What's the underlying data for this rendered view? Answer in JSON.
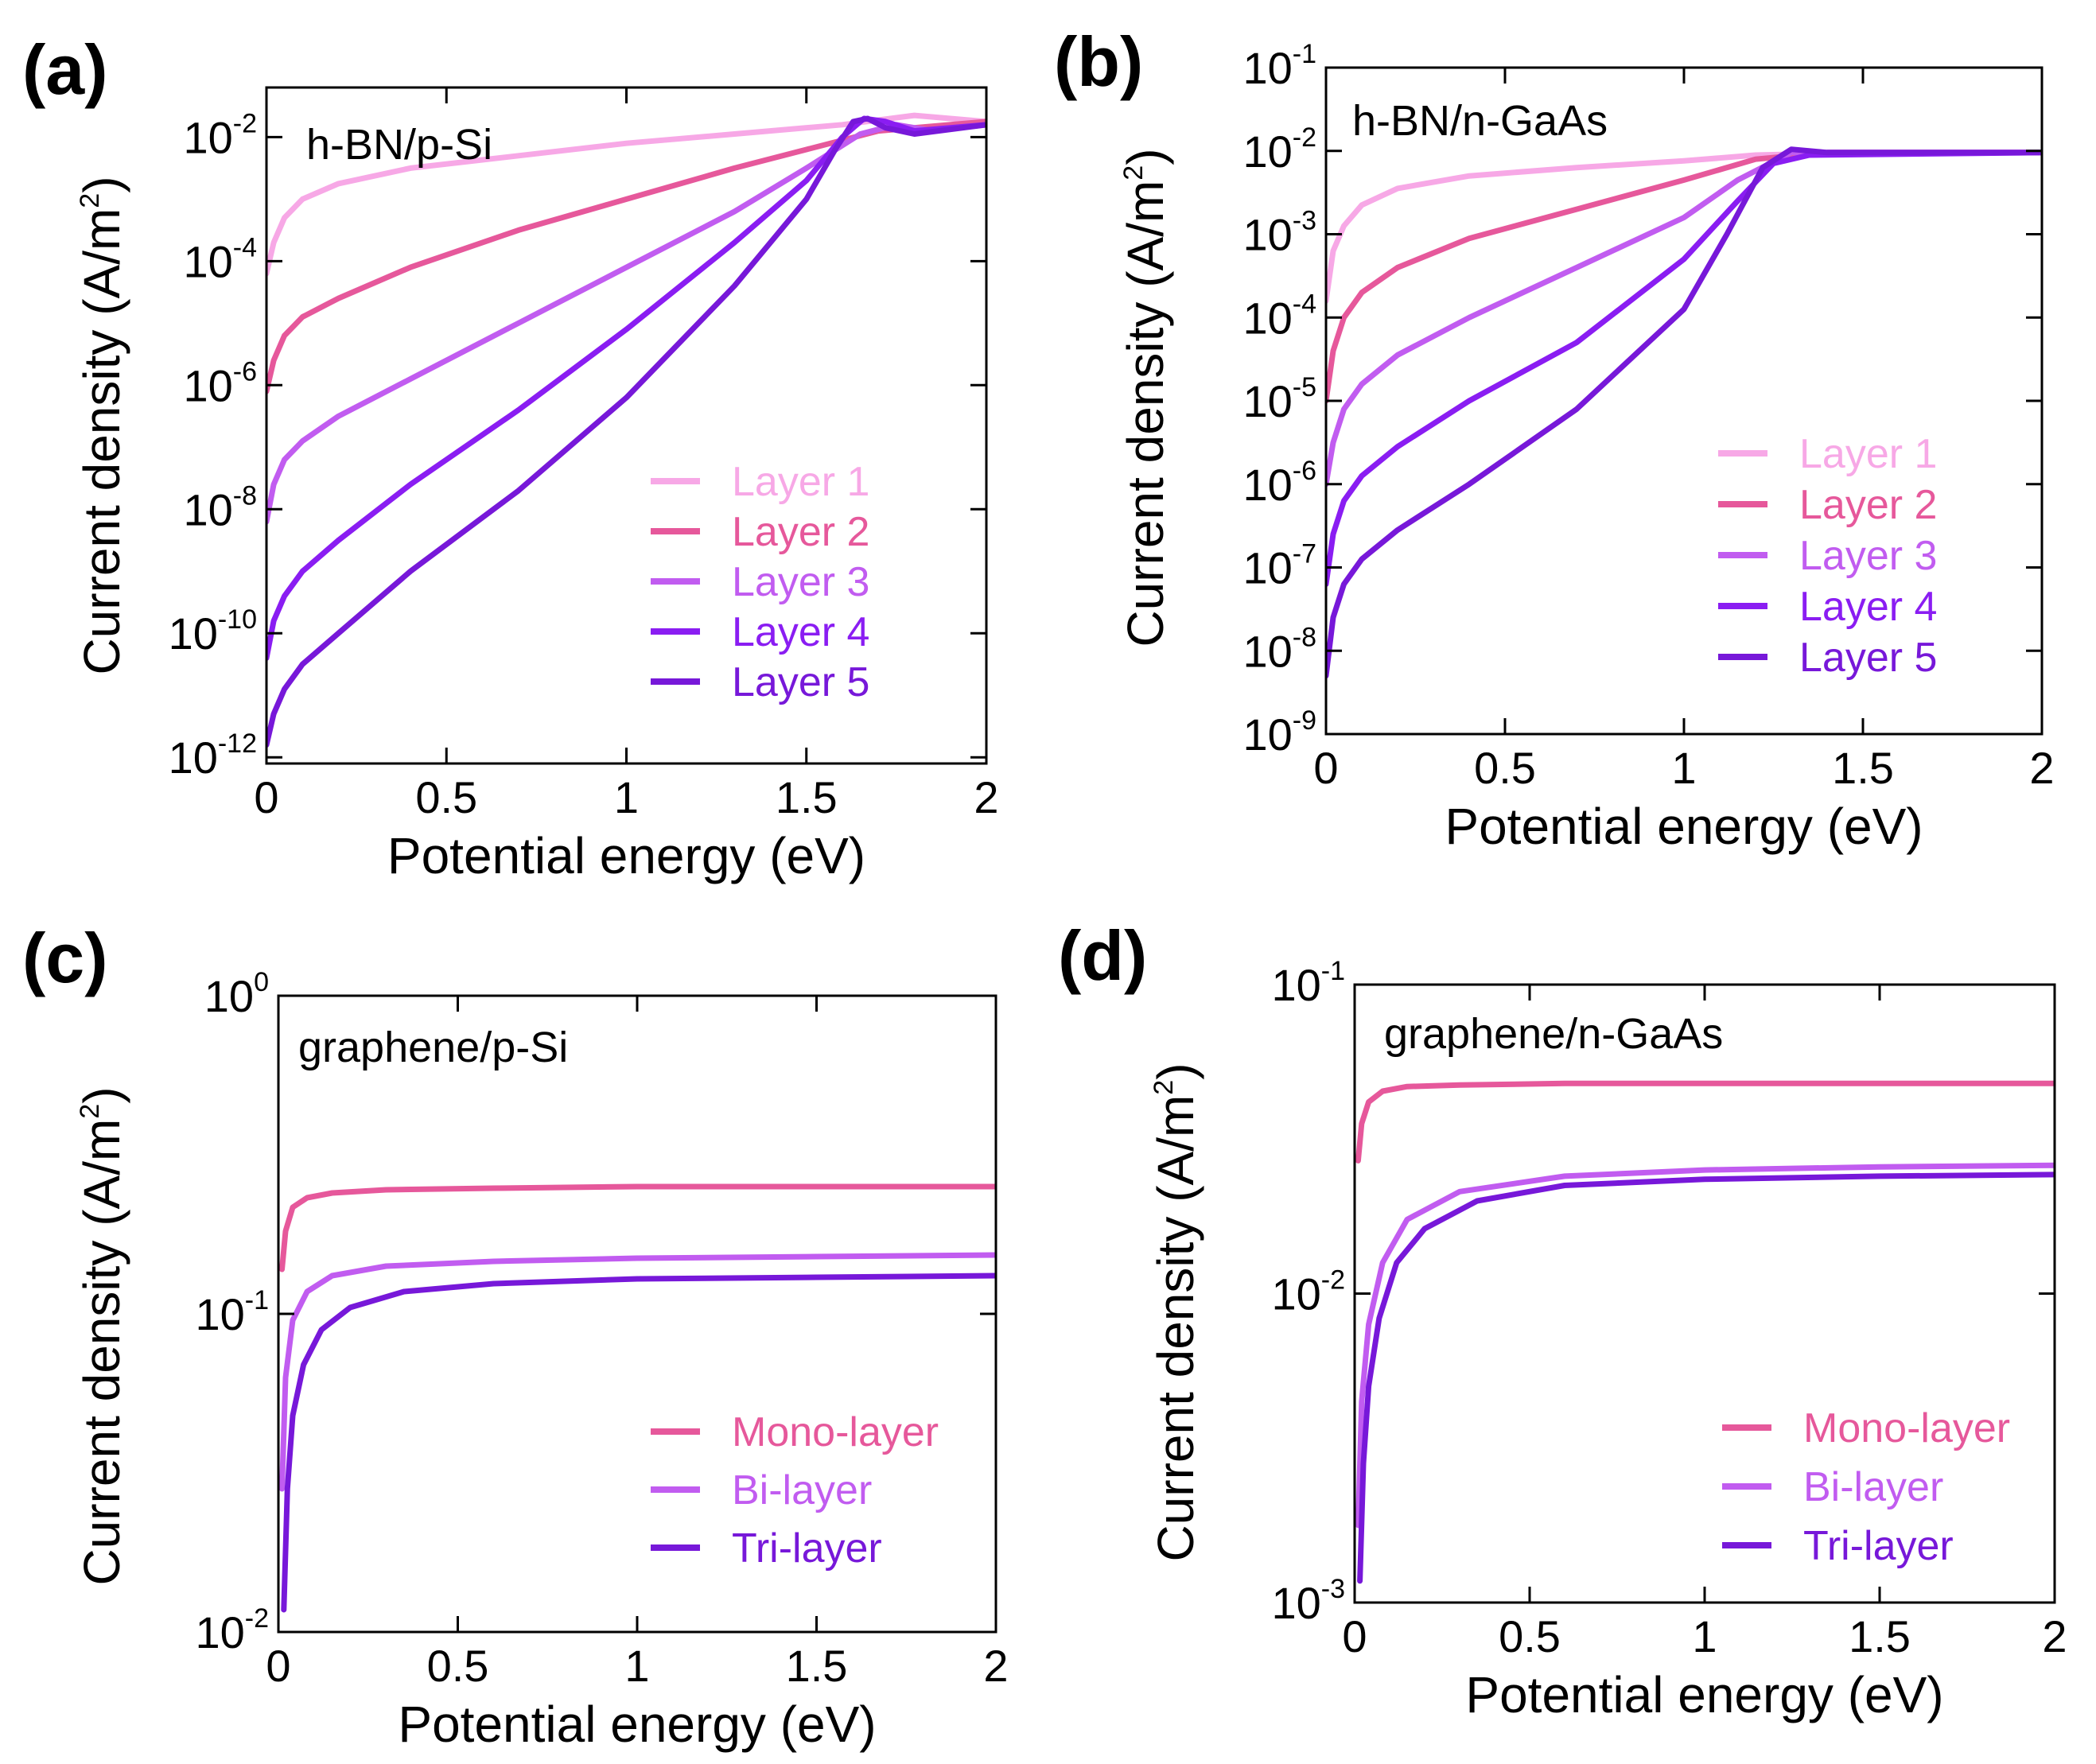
{
  "colors": {
    "c1": "#f7a8e6",
    "c2": "#e264c4",
    "c3": "#c15cf0",
    "c4": "#8a1df2",
    "c5": "#7718d9",
    "pink": "#e6589b",
    "mono": "#f7a8e6",
    "bi": "#c15cf0",
    "tri": "#7718d9"
  },
  "chart_data": [
    {
      "panel": "(a)",
      "type": "line",
      "yscale": "log",
      "annotation": "h-BN/p-Si",
      "xlabel": "Potential energy (eV)",
      "ylabel": "Current density (A/m",
      "ylabel_sup": "2",
      "ylabel_end": ")",
      "xlim": [
        0,
        2
      ],
      "ylim_log10": [
        -12.1,
        -1.2
      ],
      "x_ticks": [
        0,
        0.5,
        1,
        1.5,
        2
      ],
      "x_tick_labels": [
        "0",
        "0.5",
        "1",
        "1.5",
        "2"
      ],
      "y_ticks": [
        -12,
        -10,
        -8,
        -6,
        -4,
        -2
      ],
      "y_tick_base": "10",
      "y_tick_exps": [
        "-12",
        "-10",
        "-8",
        "-6",
        "-4",
        "-2"
      ],
      "legend": [
        "Layer 1",
        "Layer 2",
        "Layer 3",
        "Layer 4",
        "Layer 5"
      ],
      "series": [
        {
          "name": "Layer 1",
          "color_key": "c1",
          "x": [
            0,
            0.02,
            0.05,
            0.1,
            0.2,
            0.4,
            0.7,
            1.0,
            1.3,
            1.6,
            1.8,
            2.0
          ],
          "log10y": [
            -4.2,
            -3.7,
            -3.3,
            -3.0,
            -2.75,
            -2.5,
            -2.3,
            -2.1,
            -1.95,
            -1.8,
            -1.65,
            -1.75
          ]
        },
        {
          "name": "Layer 2",
          "color_key": "pink",
          "x": [
            0,
            0.02,
            0.05,
            0.1,
            0.2,
            0.4,
            0.7,
            1.0,
            1.3,
            1.5,
            1.7,
            2.0
          ],
          "log10y": [
            -6.1,
            -5.6,
            -5.2,
            -4.9,
            -4.6,
            -4.1,
            -3.5,
            -3.0,
            -2.5,
            -2.2,
            -1.9,
            -1.75
          ]
        },
        {
          "name": "Layer 3",
          "color_key": "c3",
          "x": [
            0,
            0.02,
            0.05,
            0.1,
            0.2,
            0.4,
            0.7,
            1.0,
            1.3,
            1.5,
            1.65,
            1.75,
            1.85,
            2.0
          ],
          "log10y": [
            -8.2,
            -7.6,
            -7.2,
            -6.9,
            -6.5,
            -5.9,
            -5.0,
            -4.1,
            -3.2,
            -2.5,
            -1.95,
            -1.8,
            -1.9,
            -1.8
          ]
        },
        {
          "name": "Layer 4",
          "color_key": "c4",
          "x": [
            0,
            0.02,
            0.05,
            0.1,
            0.2,
            0.4,
            0.7,
            1.0,
            1.3,
            1.5,
            1.6,
            1.66,
            1.72,
            1.8,
            2.0
          ],
          "log10y": [
            -10.4,
            -9.8,
            -9.4,
            -9.0,
            -8.5,
            -7.6,
            -6.4,
            -5.1,
            -3.7,
            -2.7,
            -2.0,
            -1.7,
            -1.75,
            -1.9,
            -1.8
          ]
        },
        {
          "name": "Layer 5",
          "color_key": "c5",
          "x": [
            0,
            0.02,
            0.05,
            0.1,
            0.2,
            0.4,
            0.7,
            1.0,
            1.3,
            1.5,
            1.58,
            1.63,
            1.67,
            1.72,
            1.8,
            2.0
          ],
          "log10y": [
            -11.8,
            -11.3,
            -10.9,
            -10.5,
            -10.0,
            -9.0,
            -7.7,
            -6.2,
            -4.4,
            -3.0,
            -2.2,
            -1.75,
            -1.7,
            -1.85,
            -1.95,
            -1.8
          ]
        }
      ]
    },
    {
      "panel": "(b)",
      "type": "line",
      "yscale": "log",
      "annotation": "h-BN/n-GaAs",
      "xlabel": "Potential energy (eV)",
      "ylabel": "Current density (A/m",
      "ylabel_sup": "2",
      "ylabel_end": ")",
      "xlim": [
        0,
        2
      ],
      "ylim_log10": [
        -9,
        -1
      ],
      "x_ticks": [
        0,
        0.5,
        1,
        1.5,
        2
      ],
      "x_tick_labels": [
        "0",
        "0.5",
        "1",
        "1.5",
        "2"
      ],
      "y_ticks": [
        -9,
        -8,
        -7,
        -6,
        -5,
        -4,
        -3,
        -2,
        -1
      ],
      "y_tick_base": "10",
      "y_tick_exps": [
        "-9",
        "-8",
        "-7",
        "-6",
        "-5",
        "-4",
        "-3",
        "-2",
        "-1"
      ],
      "legend": [
        "Layer 1",
        "Layer 2",
        "Layer 3",
        "Layer 4",
        "Layer 5"
      ],
      "series": [
        {
          "name": "Layer 1",
          "color_key": "c1",
          "x": [
            0,
            0.02,
            0.05,
            0.1,
            0.2,
            0.4,
            0.7,
            1.0,
            1.2,
            1.5,
            2.0
          ],
          "log10y": [
            -3.8,
            -3.2,
            -2.9,
            -2.65,
            -2.45,
            -2.3,
            -2.2,
            -2.12,
            -2.05,
            -2.02,
            -2.02
          ]
        },
        {
          "name": "Layer 2",
          "color_key": "pink",
          "x": [
            0,
            0.02,
            0.05,
            0.1,
            0.2,
            0.4,
            0.7,
            1.0,
            1.2,
            1.4,
            2.0
          ],
          "log10y": [
            -5.0,
            -4.4,
            -4.0,
            -3.7,
            -3.4,
            -3.05,
            -2.7,
            -2.35,
            -2.1,
            -2.02,
            -2.02
          ]
        },
        {
          "name": "Layer 3",
          "color_key": "c3",
          "x": [
            0,
            0.02,
            0.05,
            0.1,
            0.2,
            0.4,
            0.7,
            1.0,
            1.15,
            1.3,
            2.0
          ],
          "log10y": [
            -6.0,
            -5.5,
            -5.1,
            -4.8,
            -4.45,
            -4.0,
            -3.4,
            -2.8,
            -2.35,
            -2.02,
            -2.02
          ]
        },
        {
          "name": "Layer 4",
          "color_key": "c4",
          "x": [
            0,
            0.02,
            0.05,
            0.1,
            0.2,
            0.4,
            0.7,
            1.0,
            1.15,
            1.25,
            1.35,
            2.0
          ],
          "log10y": [
            -7.2,
            -6.6,
            -6.2,
            -5.9,
            -5.55,
            -5.0,
            -4.3,
            -3.3,
            -2.6,
            -2.15,
            -2.05,
            -2.02
          ]
        },
        {
          "name": "Layer 5",
          "color_key": "c5",
          "x": [
            0,
            0.02,
            0.05,
            0.1,
            0.2,
            0.4,
            0.7,
            1.0,
            1.12,
            1.22,
            1.3,
            1.4,
            2.0
          ],
          "log10y": [
            -8.3,
            -7.6,
            -7.2,
            -6.9,
            -6.55,
            -6.0,
            -5.1,
            -3.9,
            -3.0,
            -2.2,
            -1.98,
            -2.02,
            -2.02
          ]
        }
      ]
    },
    {
      "panel": "(c)",
      "type": "line",
      "yscale": "log",
      "annotation": "graphene/p-Si",
      "xlabel": "Potential energy (eV)",
      "ylabel": "Current density (A/m",
      "ylabel_sup": "2",
      "ylabel_end": ")",
      "xlim": [
        0,
        2
      ],
      "ylim_log10": [
        -2,
        0
      ],
      "x_ticks": [
        0,
        0.5,
        1,
        1.5,
        2
      ],
      "x_tick_labels": [
        "0",
        "0.5",
        "1",
        "1.5",
        "2"
      ],
      "y_ticks": [
        -2,
        -1,
        0
      ],
      "y_tick_base": "10",
      "y_tick_exps": [
        "-2",
        "-1",
        "0"
      ],
      "legend": [
        "Mono-layer",
        "Bi-layer",
        "Tri-layer"
      ],
      "series": [
        {
          "name": "Mono-layer",
          "color_key": "pink",
          "x": [
            0.01,
            0.02,
            0.04,
            0.08,
            0.15,
            0.3,
            0.6,
            1.0,
            1.5,
            2.0
          ],
          "log10y": [
            -0.86,
            -0.74,
            -0.665,
            -0.635,
            -0.62,
            -0.61,
            -0.605,
            -0.6,
            -0.6,
            -0.6
          ]
        },
        {
          "name": "Bi-layer",
          "color_key": "c3",
          "x": [
            0.01,
            0.02,
            0.04,
            0.08,
            0.15,
            0.3,
            0.6,
            1.0,
            1.5,
            2.0
          ],
          "log10y": [
            -1.55,
            -1.2,
            -1.02,
            -0.93,
            -0.88,
            -0.85,
            -0.835,
            -0.825,
            -0.82,
            -0.815
          ]
        },
        {
          "name": "Tri-layer",
          "color_key": "c5",
          "x": [
            0.015,
            0.025,
            0.04,
            0.07,
            0.12,
            0.2,
            0.35,
            0.6,
            1.0,
            1.5,
            2.0
          ],
          "log10y": [
            -1.93,
            -1.55,
            -1.32,
            -1.16,
            -1.05,
            -0.98,
            -0.93,
            -0.905,
            -0.89,
            -0.885,
            -0.88
          ]
        }
      ]
    },
    {
      "panel": "(d)",
      "type": "line",
      "yscale": "log",
      "annotation": "graphene/n-GaAs",
      "xlabel": "Potential energy (eV)",
      "ylabel": "Current density (A/m",
      "ylabel_sup": "2",
      "ylabel_end": ")",
      "xlim": [
        0,
        2
      ],
      "ylim_log10": [
        -3,
        -1
      ],
      "x_ticks": [
        0,
        0.5,
        1,
        1.5,
        2
      ],
      "x_tick_labels": [
        "0",
        "0.5",
        "1",
        "1.5",
        "2"
      ],
      "y_ticks": [
        -3,
        -2,
        -1
      ],
      "y_tick_base": "10",
      "y_tick_exps": [
        "-3",
        "-2",
        "-1"
      ],
      "legend": [
        "Mono-layer",
        "Bi-layer",
        "Tri-layer"
      ],
      "series": [
        {
          "name": "Mono-layer",
          "color_key": "pink",
          "x": [
            0.01,
            0.02,
            0.04,
            0.08,
            0.15,
            0.3,
            0.6,
            1.0,
            1.5,
            2.0
          ],
          "log10y": [
            -1.57,
            -1.45,
            -1.38,
            -1.345,
            -1.33,
            -1.325,
            -1.32,
            -1.32,
            -1.32,
            -1.32
          ]
        },
        {
          "name": "Bi-layer",
          "color_key": "c3",
          "x": [
            0.01,
            0.02,
            0.04,
            0.08,
            0.15,
            0.3,
            0.6,
            1.0,
            1.5,
            2.0
          ],
          "log10y": [
            -2.75,
            -2.35,
            -2.1,
            -1.9,
            -1.76,
            -1.67,
            -1.62,
            -1.6,
            -1.59,
            -1.585
          ]
        },
        {
          "name": "Tri-layer",
          "color_key": "c5",
          "x": [
            0.015,
            0.025,
            0.04,
            0.07,
            0.12,
            0.2,
            0.35,
            0.6,
            1.0,
            1.5,
            2.0
          ],
          "log10y": [
            -2.93,
            -2.55,
            -2.3,
            -2.08,
            -1.9,
            -1.79,
            -1.7,
            -1.65,
            -1.63,
            -1.62,
            -1.615
          ]
        }
      ]
    }
  ]
}
